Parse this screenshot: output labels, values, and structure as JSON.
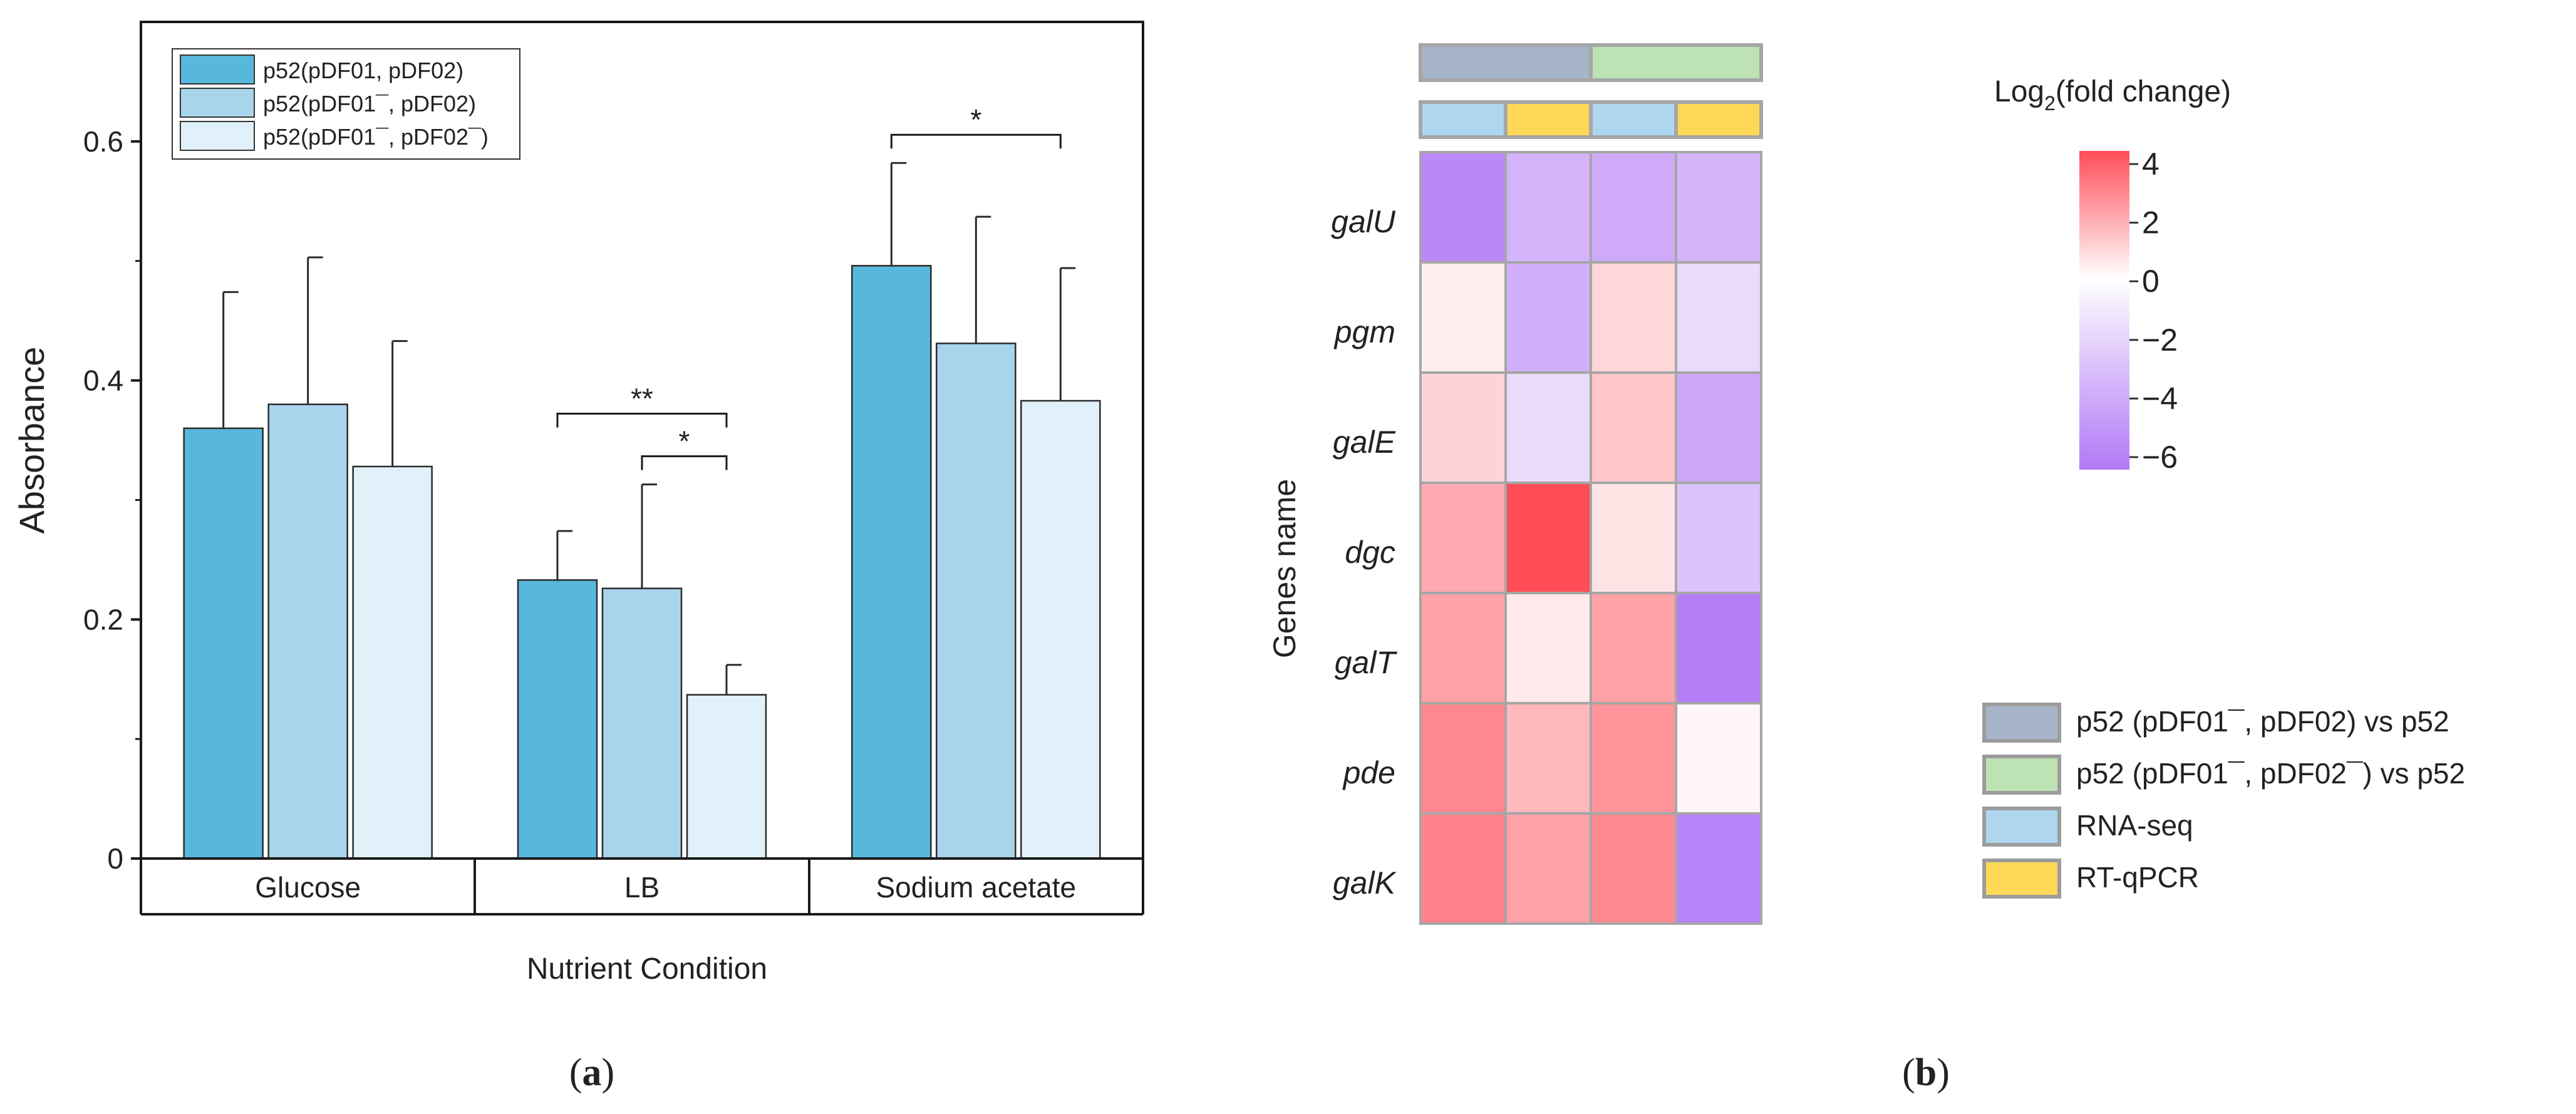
{
  "panel_a": {
    "caption_letter": "a",
    "legend": [
      {
        "label": "p52(pDF01, pDF02)",
        "color": "#58b7dc"
      },
      {
        "label": "p52(pDF01¯, pDF02)",
        "color": "#a8d5ec"
      },
      {
        "label": "p52(pDF01¯, pDF02¯)",
        "color": "#e1f1f9"
      }
    ],
    "significance": [
      {
        "group": "Sodium acetate",
        "from": 0,
        "to": 2,
        "mark": "*"
      },
      {
        "group": "LB",
        "from": 0,
        "to": 2,
        "mark": "**"
      },
      {
        "group": "LB",
        "from": 1,
        "to": 2,
        "mark": "*"
      }
    ]
  },
  "panel_b": {
    "caption_letter": "b",
    "colorbar_title_prefix": "Log",
    "colorbar_title_sub": "2",
    "colorbar_title_suffix": "(fold change)",
    "colorbar_ticks": [
      "4",
      "2",
      "0",
      "−2",
      "−4",
      "−6"
    ],
    "legend": [
      {
        "label": "p52 (pDF01¯, pDF02) vs p52",
        "color": "#a7b5c9"
      },
      {
        "label": "p52 (pDF01¯, pDF02¯) vs p52",
        "color": "#bde3b4"
      },
      {
        "label": "RNA-seq",
        "color": "#aed7ef"
      },
      {
        "label": "RT-qPCR",
        "color": "#ffd857"
      }
    ],
    "top_annotation_row1": [
      "#a7b5c9",
      "#a7b5c9",
      "#bde3b4",
      "#bde3b4"
    ],
    "top_annotation_row2": [
      "#aed7ef",
      "#ffd857",
      "#aed7ef",
      "#ffd857"
    ]
  },
  "chart_data": [
    {
      "type": "bar",
      "title": "",
      "xlabel": "Nutrient Condition",
      "ylabel": "Absorbance",
      "categories": [
        "Glucose",
        "LB",
        "Sodium acetate"
      ],
      "ylim": [
        0,
        0.7
      ],
      "yticks": [
        0,
        0.2,
        0.4,
        0.6
      ],
      "ytick_labels": [
        "0",
        "0.2",
        "0.4",
        "0.6"
      ],
      "series": [
        {
          "name": "p52(pDF01, pDF02)",
          "values": [
            0.36,
            0.233,
            0.496
          ],
          "errors": [
            0.114,
            0.041,
            0.086
          ]
        },
        {
          "name": "p52(pDF01¯, pDF02)",
          "values": [
            0.38,
            0.226,
            0.431
          ],
          "errors": [
            0.123,
            0.087,
            0.106
          ]
        },
        {
          "name": "p52(pDF01¯, pDF02¯)",
          "values": [
            0.328,
            0.137,
            0.383
          ],
          "errors": [
            0.105,
            0.025,
            0.111
          ]
        }
      ]
    },
    {
      "type": "heatmap",
      "title": "",
      "ylabel": "Genes name",
      "rows": [
        "galU",
        "pgm",
        "galE",
        "dgc",
        "galT",
        "pde",
        "galK"
      ],
      "columns": [
        "p52 (pDF01¯, pDF02) vs p52 RNA-seq",
        "p52 (pDF01¯, pDF02) vs p52 RT-qPCR",
        "p52 (pDF01¯, pDF02¯) vs p52 RNA-seq",
        "p52 (pDF01¯, pDF02¯) vs p52 RT-qPCR"
      ],
      "values": [
        [
          -5.3,
          -3.4,
          -3.8,
          -3.3
        ],
        [
          0.4,
          -3.6,
          0.9,
          -1.6
        ],
        [
          1.0,
          -1.6,
          1.3,
          -4.0
        ],
        [
          1.9,
          4.0,
          0.6,
          -2.7
        ],
        [
          2.1,
          0.5,
          2.1,
          -5.8
        ],
        [
          2.7,
          1.6,
          2.4,
          0.2
        ],
        [
          2.8,
          2.1,
          2.6,
          -5.5
        ]
      ],
      "vmin": -6,
      "vmax": 4,
      "colormap": [
        "#b279f6",
        "#ffffff",
        "#ff4d58"
      ]
    }
  ]
}
